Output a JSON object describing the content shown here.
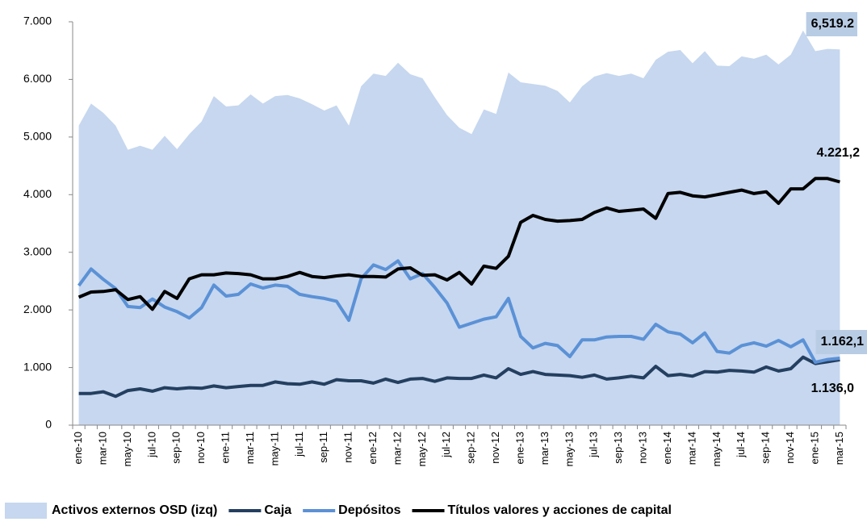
{
  "chart_data": {
    "type": "line",
    "categories": [
      "ene-10",
      null,
      "mar-10",
      null,
      "may-10",
      null,
      "jul-10",
      null,
      "sep-10",
      null,
      "nov-10",
      null,
      "ene-11",
      null,
      "mar-11",
      null,
      "may-11",
      null,
      "jul-11",
      null,
      "sep-11",
      null,
      "nov-11",
      null,
      "ene-12",
      null,
      "mar-12",
      null,
      "may-12",
      null,
      "jul-12",
      null,
      "sep-12",
      null,
      "nov-12",
      null,
      "ene-13",
      null,
      "mar-13",
      null,
      "may-13",
      null,
      "jul-13",
      null,
      "sep-13",
      null,
      "nov-13",
      null,
      "ene-14",
      null,
      "mar-14",
      null,
      "may-14",
      null,
      "jul-14",
      null,
      "sep-14",
      null,
      "nov-14",
      null,
      "ene-15",
      null,
      "mar-15"
    ],
    "ylim": [
      0,
      7000
    ],
    "yticks": [
      0,
      {
        "value": 1000,
        "label": "1.000"
      },
      {
        "value": 2000,
        "label": "2.000"
      },
      {
        "value": 3000,
        "label": "3.000"
      },
      {
        "value": 4000,
        "label": "4.000"
      },
      {
        "value": 5000,
        "label": "5.000"
      },
      {
        "value": 6000,
        "label": "6.000"
      },
      {
        "value": 7000,
        "label": "7.000"
      }
    ],
    "series": [
      {
        "name": "Activos externos OSD (izq)",
        "style": "area",
        "color": "#c6d7ef",
        "label_box": "#b8cce4",
        "values": [
          5200,
          5580,
          5420,
          5200,
          4780,
          4850,
          4780,
          5020,
          4790,
          5050,
          5270,
          5710,
          5530,
          5550,
          5740,
          5580,
          5710,
          5730,
          5670,
          5570,
          5460,
          5550,
          5200,
          5880,
          6100,
          6060,
          6290,
          6090,
          6020,
          5690,
          5380,
          5160,
          5050,
          5480,
          5400,
          6120,
          5950,
          5920,
          5890,
          5800,
          5600,
          5880,
          6050,
          6110,
          6060,
          6100,
          6020,
          6340,
          6480,
          6510,
          6280,
          6490,
          6240,
          6230,
          6400,
          6360,
          6430,
          6260,
          6430,
          6850,
          6490,
          6530,
          6519.2
        ],
        "value_labels": [
          null,
          null,
          null,
          null,
          null,
          null,
          null,
          null,
          null,
          null,
          null,
          null,
          null,
          null,
          null,
          null,
          null,
          null,
          null,
          null,
          null,
          null,
          null,
          null,
          null,
          null,
          null,
          null,
          null,
          null,
          null,
          null,
          null,
          null,
          null,
          null,
          null,
          null,
          null,
          null,
          null,
          null,
          null,
          null,
          null,
          null,
          null,
          null,
          null,
          null,
          null,
          null,
          null,
          null,
          null,
          null,
          null,
          null,
          null,
          null,
          null,
          null,
          "6,519.2"
        ]
      },
      {
        "name": "Caja",
        "style": "line",
        "color": "#243f60",
        "values": [
          550,
          550,
          580,
          500,
          600,
          630,
          590,
          650,
          630,
          650,
          640,
          680,
          650,
          670,
          690,
          690,
          750,
          720,
          710,
          750,
          710,
          790,
          770,
          770,
          730,
          800,
          740,
          800,
          810,
          760,
          820,
          810,
          810,
          870,
          820,
          980,
          880,
          930,
          880,
          870,
          860,
          830,
          870,
          800,
          820,
          850,
          820,
          1020,
          860,
          880,
          850,
          930,
          920,
          950,
          940,
          920,
          1010,
          940,
          980,
          1180,
          1070,
          1100,
          1136.0
        ],
        "value_labels": [
          null,
          null,
          null,
          null,
          null,
          null,
          null,
          null,
          null,
          null,
          null,
          null,
          null,
          null,
          null,
          null,
          null,
          null,
          null,
          null,
          null,
          null,
          null,
          null,
          null,
          null,
          null,
          null,
          null,
          null,
          null,
          null,
          null,
          null,
          null,
          null,
          null,
          null,
          null,
          null,
          null,
          null,
          null,
          null,
          null,
          null,
          null,
          null,
          null,
          null,
          null,
          null,
          null,
          null,
          null,
          null,
          null,
          null,
          null,
          null,
          null,
          null,
          "1.136,0"
        ]
      },
      {
        "name": "Depósitos",
        "style": "line",
        "color": "#5b91d6",
        "label_box": "#b8cce4",
        "values": [
          2420,
          2710,
          2530,
          2370,
          2060,
          2040,
          2190,
          2050,
          1970,
          1860,
          2040,
          2430,
          2240,
          2270,
          2450,
          2380,
          2430,
          2410,
          2270,
          2230,
          2200,
          2150,
          1820,
          2540,
          2780,
          2700,
          2850,
          2540,
          2630,
          2390,
          2120,
          1700,
          1770,
          1840,
          1880,
          2200,
          1540,
          1340,
          1420,
          1380,
          1190,
          1480,
          1480,
          1530,
          1540,
          1540,
          1490,
          1750,
          1620,
          1580,
          1430,
          1600,
          1280,
          1250,
          1380,
          1430,
          1370,
          1470,
          1360,
          1480,
          1090,
          1140,
          1162.1
        ],
        "value_labels": [
          null,
          null,
          null,
          null,
          null,
          null,
          null,
          null,
          null,
          null,
          null,
          null,
          null,
          null,
          null,
          null,
          null,
          null,
          null,
          null,
          null,
          null,
          null,
          null,
          null,
          null,
          null,
          null,
          null,
          null,
          null,
          null,
          null,
          null,
          null,
          null,
          null,
          null,
          null,
          null,
          null,
          null,
          null,
          null,
          null,
          null,
          null,
          null,
          null,
          null,
          null,
          null,
          null,
          null,
          null,
          null,
          null,
          null,
          null,
          null,
          null,
          null,
          "1.162,1"
        ]
      },
      {
        "name": "Títulos valores y acciones de capital",
        "style": "line",
        "color": "#000000",
        "values": [
          2220,
          2310,
          2320,
          2350,
          2180,
          2230,
          2010,
          2320,
          2200,
          2540,
          2610,
          2610,
          2640,
          2630,
          2610,
          2540,
          2540,
          2580,
          2650,
          2580,
          2560,
          2590,
          2610,
          2580,
          2580,
          2570,
          2710,
          2730,
          2600,
          2610,
          2520,
          2650,
          2450,
          2760,
          2720,
          2930,
          3520,
          3640,
          3570,
          3540,
          3550,
          3570,
          3690,
          3770,
          3710,
          3730,
          3750,
          3590,
          4020,
          4040,
          3980,
          3960,
          4000,
          4040,
          4080,
          4020,
          4050,
          3850,
          4100,
          4100,
          4280,
          4280,
          4221.2
        ],
        "value_labels": [
          null,
          null,
          null,
          null,
          null,
          null,
          null,
          null,
          null,
          null,
          null,
          null,
          null,
          null,
          null,
          null,
          null,
          null,
          null,
          null,
          null,
          null,
          null,
          null,
          null,
          null,
          null,
          null,
          null,
          null,
          null,
          null,
          null,
          null,
          null,
          null,
          null,
          null,
          null,
          null,
          null,
          null,
          null,
          null,
          null,
          null,
          null,
          null,
          null,
          null,
          null,
          null,
          null,
          null,
          null,
          null,
          null,
          null,
          null,
          null,
          null,
          null,
          "4.221,2"
        ]
      }
    ],
    "legend": "bottom"
  }
}
